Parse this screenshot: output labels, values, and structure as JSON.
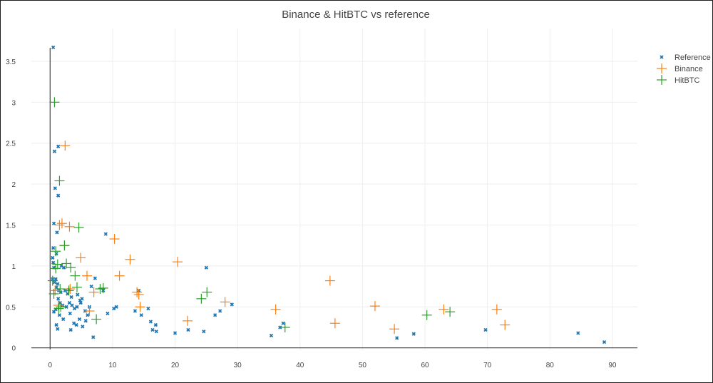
{
  "chart_data": {
    "type": "scatter",
    "title": "Binance & HitBTC vs reference",
    "xlabel": "",
    "ylabel": "",
    "xlim": [
      -3,
      94
    ],
    "ylim": [
      -0.02,
      3.9
    ],
    "xticks": [
      0,
      10,
      20,
      30,
      40,
      50,
      60,
      70,
      80,
      90
    ],
    "yticks": [
      0,
      0.5,
      1,
      1.5,
      2,
      2.5,
      3,
      3.5
    ],
    "xtick_labels": [
      "0",
      "10",
      "20",
      "30",
      "40",
      "50",
      "60",
      "70",
      "80",
      "90"
    ],
    "ytick_labels": [
      "0",
      "0.5",
      "1",
      "1.5",
      "2",
      "2.5",
      "3",
      "3.5"
    ],
    "grid": true,
    "legend_position": "top-right",
    "series": [
      {
        "name": "Reference",
        "marker": "x",
        "color": "#1f77b4",
        "points": [
          [
            0.5,
            3.67
          ],
          [
            0.7,
            2.4
          ],
          [
            1.3,
            2.46
          ],
          [
            0.8,
            1.95
          ],
          [
            1.3,
            1.86
          ],
          [
            0.6,
            1.52
          ],
          [
            1.1,
            1.41
          ],
          [
            0.5,
            1.22
          ],
          [
            1.0,
            1.15
          ],
          [
            0.4,
            1.1
          ],
          [
            0.5,
            1.04
          ],
          [
            0.6,
            0.98
          ],
          [
            1.8,
            1.0
          ],
          [
            2.2,
            0.98
          ],
          [
            0.4,
            0.84
          ],
          [
            0.7,
            0.8
          ],
          [
            0.9,
            0.84
          ],
          [
            1.2,
            0.78
          ],
          [
            1.0,
            0.74
          ],
          [
            1.4,
            0.7
          ],
          [
            1.7,
            0.68
          ],
          [
            2.4,
            0.7
          ],
          [
            2.8,
            0.66
          ],
          [
            3.0,
            0.71
          ],
          [
            3.4,
            0.62
          ],
          [
            1.3,
            0.6
          ],
          [
            1.6,
            0.55
          ],
          [
            2.0,
            0.52
          ],
          [
            2.6,
            0.5
          ],
          [
            3.1,
            0.55
          ],
          [
            3.5,
            0.52
          ],
          [
            3.9,
            0.48
          ],
          [
            4.3,
            0.5
          ],
          [
            4.8,
            0.58
          ],
          [
            5.1,
            0.6
          ],
          [
            1.5,
            0.4
          ],
          [
            2.1,
            0.35
          ],
          [
            3.2,
            0.42
          ],
          [
            3.8,
            0.3
          ],
          [
            4.2,
            0.28
          ],
          [
            4.7,
            0.35
          ],
          [
            5.2,
            0.26
          ],
          [
            5.7,
            0.33
          ],
          [
            6.0,
            0.4
          ],
          [
            6.6,
            0.75
          ],
          [
            0.9,
            0.47
          ],
          [
            0.6,
            0.44
          ],
          [
            1.0,
            0.28
          ],
          [
            1.2,
            0.23
          ],
          [
            3.3,
            0.22
          ],
          [
            4.4,
            0.65
          ],
          [
            4.9,
            0.55
          ],
          [
            5.6,
            0.45
          ],
          [
            6.3,
            0.5
          ],
          [
            6.9,
            0.13
          ],
          [
            7.2,
            0.85
          ],
          [
            8.5,
            0.7
          ],
          [
            8.9,
            1.39
          ],
          [
            9.2,
            0.42
          ],
          [
            10.2,
            0.48
          ],
          [
            10.6,
            0.5
          ],
          [
            13.6,
            0.45
          ],
          [
            14.2,
            0.7
          ],
          [
            14.6,
            0.4
          ],
          [
            15.7,
            0.48
          ],
          [
            16.1,
            0.32
          ],
          [
            16.4,
            0.22
          ],
          [
            16.9,
            0.28
          ],
          [
            17.0,
            0.2
          ],
          [
            20.0,
            0.18
          ],
          [
            22.1,
            0.22
          ],
          [
            24.6,
            0.2
          ],
          [
            25.0,
            0.98
          ],
          [
            26.4,
            0.4
          ],
          [
            27.2,
            0.45
          ],
          [
            29.1,
            0.53
          ],
          [
            35.4,
            0.15
          ],
          [
            36.8,
            0.25
          ],
          [
            37.3,
            0.3
          ],
          [
            55.5,
            0.12
          ],
          [
            58.2,
            0.17
          ],
          [
            69.7,
            0.22
          ],
          [
            84.5,
            0.18
          ],
          [
            88.7,
            0.07
          ]
        ]
      },
      {
        "name": "Binance",
        "marker": "+",
        "color": "#ff7f0e",
        "points": [
          [
            2.4,
            2.47
          ],
          [
            1.9,
            1.52
          ],
          [
            1.5,
            1.5
          ],
          [
            2.3,
            1.25
          ],
          [
            3.1,
            1.48
          ],
          [
            4.9,
            1.1
          ],
          [
            5.9,
            0.88
          ],
          [
            3.2,
            0.72
          ],
          [
            7.0,
            0.68
          ],
          [
            6.3,
            0.45
          ],
          [
            10.3,
            1.33
          ],
          [
            11.1,
            0.88
          ],
          [
            12.8,
            1.08
          ],
          [
            13.9,
            0.68
          ],
          [
            14.2,
            0.65
          ],
          [
            14.4,
            0.5
          ],
          [
            20.4,
            1.05
          ],
          [
            22.0,
            0.33
          ],
          [
            28.0,
            0.56
          ],
          [
            36.1,
            0.47
          ],
          [
            44.8,
            0.82
          ],
          [
            45.6,
            0.3
          ],
          [
            52.0,
            0.51
          ],
          [
            55.1,
            0.23
          ],
          [
            63.0,
            0.47
          ],
          [
            71.5,
            0.47
          ],
          [
            72.8,
            0.28
          ],
          [
            0.8,
            0.7
          ],
          [
            1.3,
            0.52
          ]
        ]
      },
      {
        "name": "HitBTC",
        "marker": "+",
        "color": "#2ca02c",
        "points": [
          [
            0.7,
            3.0
          ],
          [
            1.5,
            2.04
          ],
          [
            2.3,
            1.25
          ],
          [
            4.6,
            1.47
          ],
          [
            0.9,
            1.18
          ],
          [
            1.2,
            1.02
          ],
          [
            2.6,
            1.03
          ],
          [
            3.3,
            0.98
          ],
          [
            4.0,
            0.88
          ],
          [
            0.4,
            0.82
          ],
          [
            1.6,
            0.72
          ],
          [
            3.0,
            0.7
          ],
          [
            4.3,
            0.74
          ],
          [
            8.5,
            0.73
          ],
          [
            1.7,
            0.5
          ],
          [
            7.4,
            0.35
          ],
          [
            24.2,
            0.6
          ],
          [
            25.1,
            0.68
          ],
          [
            37.6,
            0.25
          ],
          [
            60.3,
            0.4
          ],
          [
            64.0,
            0.44
          ],
          [
            0.9,
            0.97
          ],
          [
            8.0,
            0.72
          ],
          [
            0.6,
            0.66
          ],
          [
            1.4,
            0.48
          ]
        ]
      }
    ]
  }
}
